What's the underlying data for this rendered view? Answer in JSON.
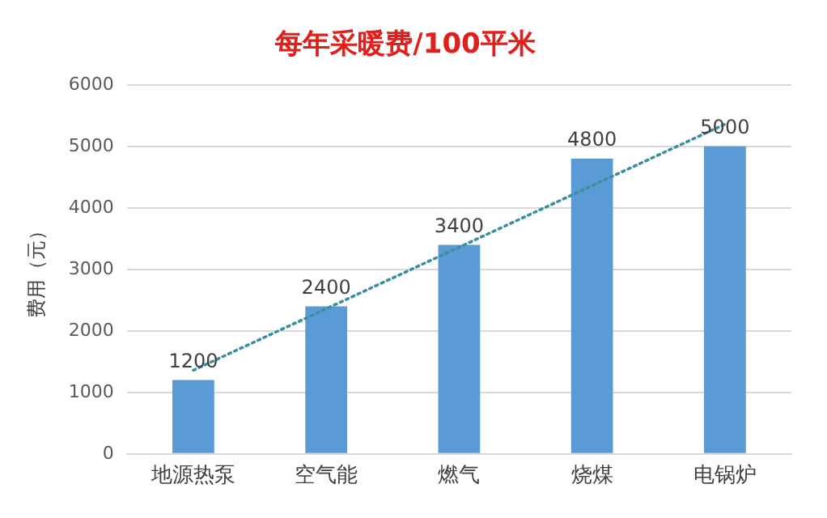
{
  "chart_data": {
    "type": "bar",
    "title": "每年采暖费/100平米",
    "ylabel": "费用（元）",
    "categories": [
      "地源热泵",
      "空气能",
      "燃气",
      "烧煤",
      "电锅炉"
    ],
    "series": [
      {
        "color": "#5b9bd5",
        "values": [
          1200,
          2400,
          3400,
          4800,
          5000
        ],
        "value_labels": [
          "1200",
          "2400",
          "3400",
          "4800",
          "5000"
        ]
      },
      {
        "type": "line",
        "color": "#3a8fa0",
        "values": [
          1360,
          2360,
          3360,
          4360,
          5360
        ],
        "line_style": "dotted",
        "marker": "none"
      }
    ],
    "ylim": [
      0,
      6000
    ],
    "yticks": [
      0,
      1000,
      2000,
      3000,
      4000,
      5000,
      6000
    ],
    "grid": "y",
    "legend": false
  }
}
